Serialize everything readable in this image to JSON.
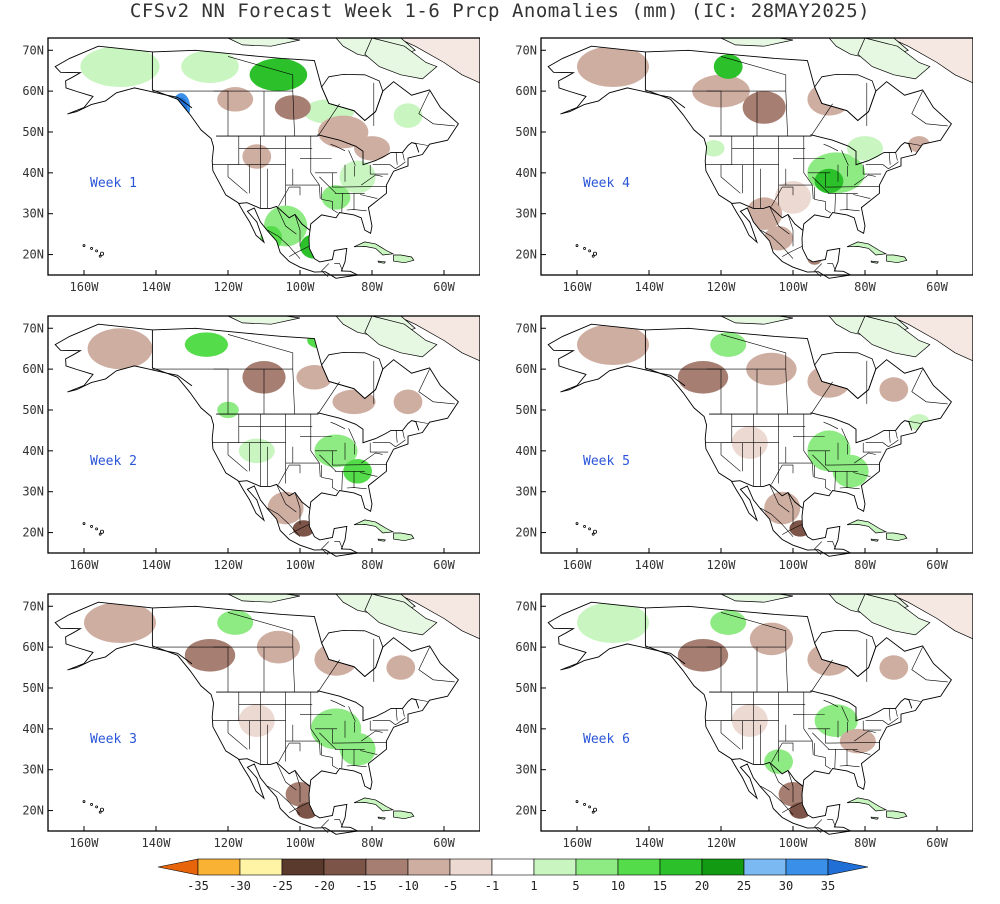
{
  "title": "CFSv2 NN Forecast Week 1-6 Prcp Anomalies (mm) (IC: 28MAY2025)",
  "lat_labels": [
    "70N",
    "60N",
    "50N",
    "40N",
    "30N",
    "20N"
  ],
  "lon_labels": [
    "160W",
    "140W",
    "120W",
    "100W",
    "80W",
    "60W"
  ],
  "panels": [
    {
      "label": "Week 1"
    },
    {
      "label": "Week 4"
    },
    {
      "label": "Week 2"
    },
    {
      "label": "Week 5"
    },
    {
      "label": "Week 3"
    },
    {
      "label": "Week 6"
    }
  ],
  "colorbar": {
    "ticks": [
      "-35",
      "-30",
      "-25",
      "-20",
      "-15",
      "-10",
      "-5",
      "-1",
      "1",
      "5",
      "10",
      "15",
      "20",
      "25",
      "30",
      "35"
    ],
    "colors": [
      "#e8640a",
      "#f9b233",
      "#fff3a6",
      "#5a3a2c",
      "#7d5548",
      "#a67f72",
      "#cfaea2",
      "#ecd9d2",
      "#ffffff",
      "#c8f5c0",
      "#8eea82",
      "#55dc4a",
      "#2cc02a",
      "#139a13",
      "#7bb9f2",
      "#3a8fe8",
      "#1f6fd6"
    ]
  },
  "colors": {
    "land": "#ffffff",
    "ocean": "#ffffff",
    "label_blue": "#2a55d8"
  }
}
